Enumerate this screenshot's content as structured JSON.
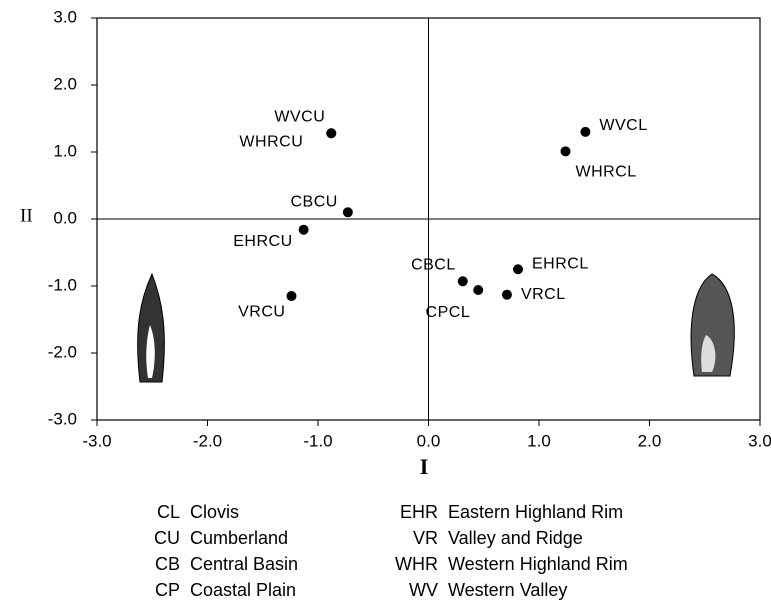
{
  "chart_data": {
    "type": "scatter",
    "x_label": "I",
    "y_label": "II",
    "point_labels": [
      "WVCU",
      "WHRCU",
      "WVCL",
      "WHRCL",
      "CBCU",
      "EHRCU",
      "VRCU",
      "CBCL",
      "CPCL",
      "VRCL",
      "EHRCL"
    ],
    "x": [
      -0.88,
      -0.88,
      1.42,
      1.24,
      -0.73,
      -1.13,
      -1.24,
      0.31,
      0.45,
      0.71,
      0.81
    ],
    "values": [
      1.28,
      1.28,
      1.3,
      1.01,
      0.1,
      -0.16,
      -1.15,
      -0.93,
      -1.06,
      -1.13,
      -0.75
    ],
    "color": "#000000",
    "xlim": [
      -3.0,
      3.0
    ],
    "ylim": [
      -3.0,
      3.0
    ],
    "xticks": [
      {
        "value": -3,
        "label": "-3.0"
      },
      {
        "value": -2,
        "label": "-2.0"
      },
      {
        "value": -1,
        "label": "-1.0"
      },
      {
        "value": 0,
        "label": "0.0"
      },
      {
        "value": 1,
        "label": "1.0"
      },
      {
        "value": 2,
        "label": "2.0"
      },
      {
        "value": 3,
        "label": "3.0"
      }
    ],
    "yticks": [
      {
        "value": -3,
        "label": "-3.0"
      },
      {
        "value": -2,
        "label": "-2.0"
      },
      {
        "value": -1,
        "label": "-1.0"
      },
      {
        "value": 0,
        "label": "0.0"
      },
      {
        "value": 1,
        "label": "1.0"
      },
      {
        "value": 2,
        "label": "2.0"
      },
      {
        "value": 3,
        "label": "3.0"
      }
    ],
    "legend": [
      {
        "code": "CL",
        "name": "Clovis"
      },
      {
        "code": "CU",
        "name": "Cumberland"
      },
      {
        "code": "CB",
        "name": "Central Basin"
      },
      {
        "code": "CP",
        "name": "Coastal Plain"
      },
      {
        "code": "EHR",
        "name": "Eastern Highland Rim"
      },
      {
        "code": "VR",
        "name": "Valley and Ridge"
      },
      {
        "code": "WHR",
        "name": "Western Highland Rim"
      },
      {
        "code": "WV",
        "name": "Western Valley"
      }
    ]
  }
}
